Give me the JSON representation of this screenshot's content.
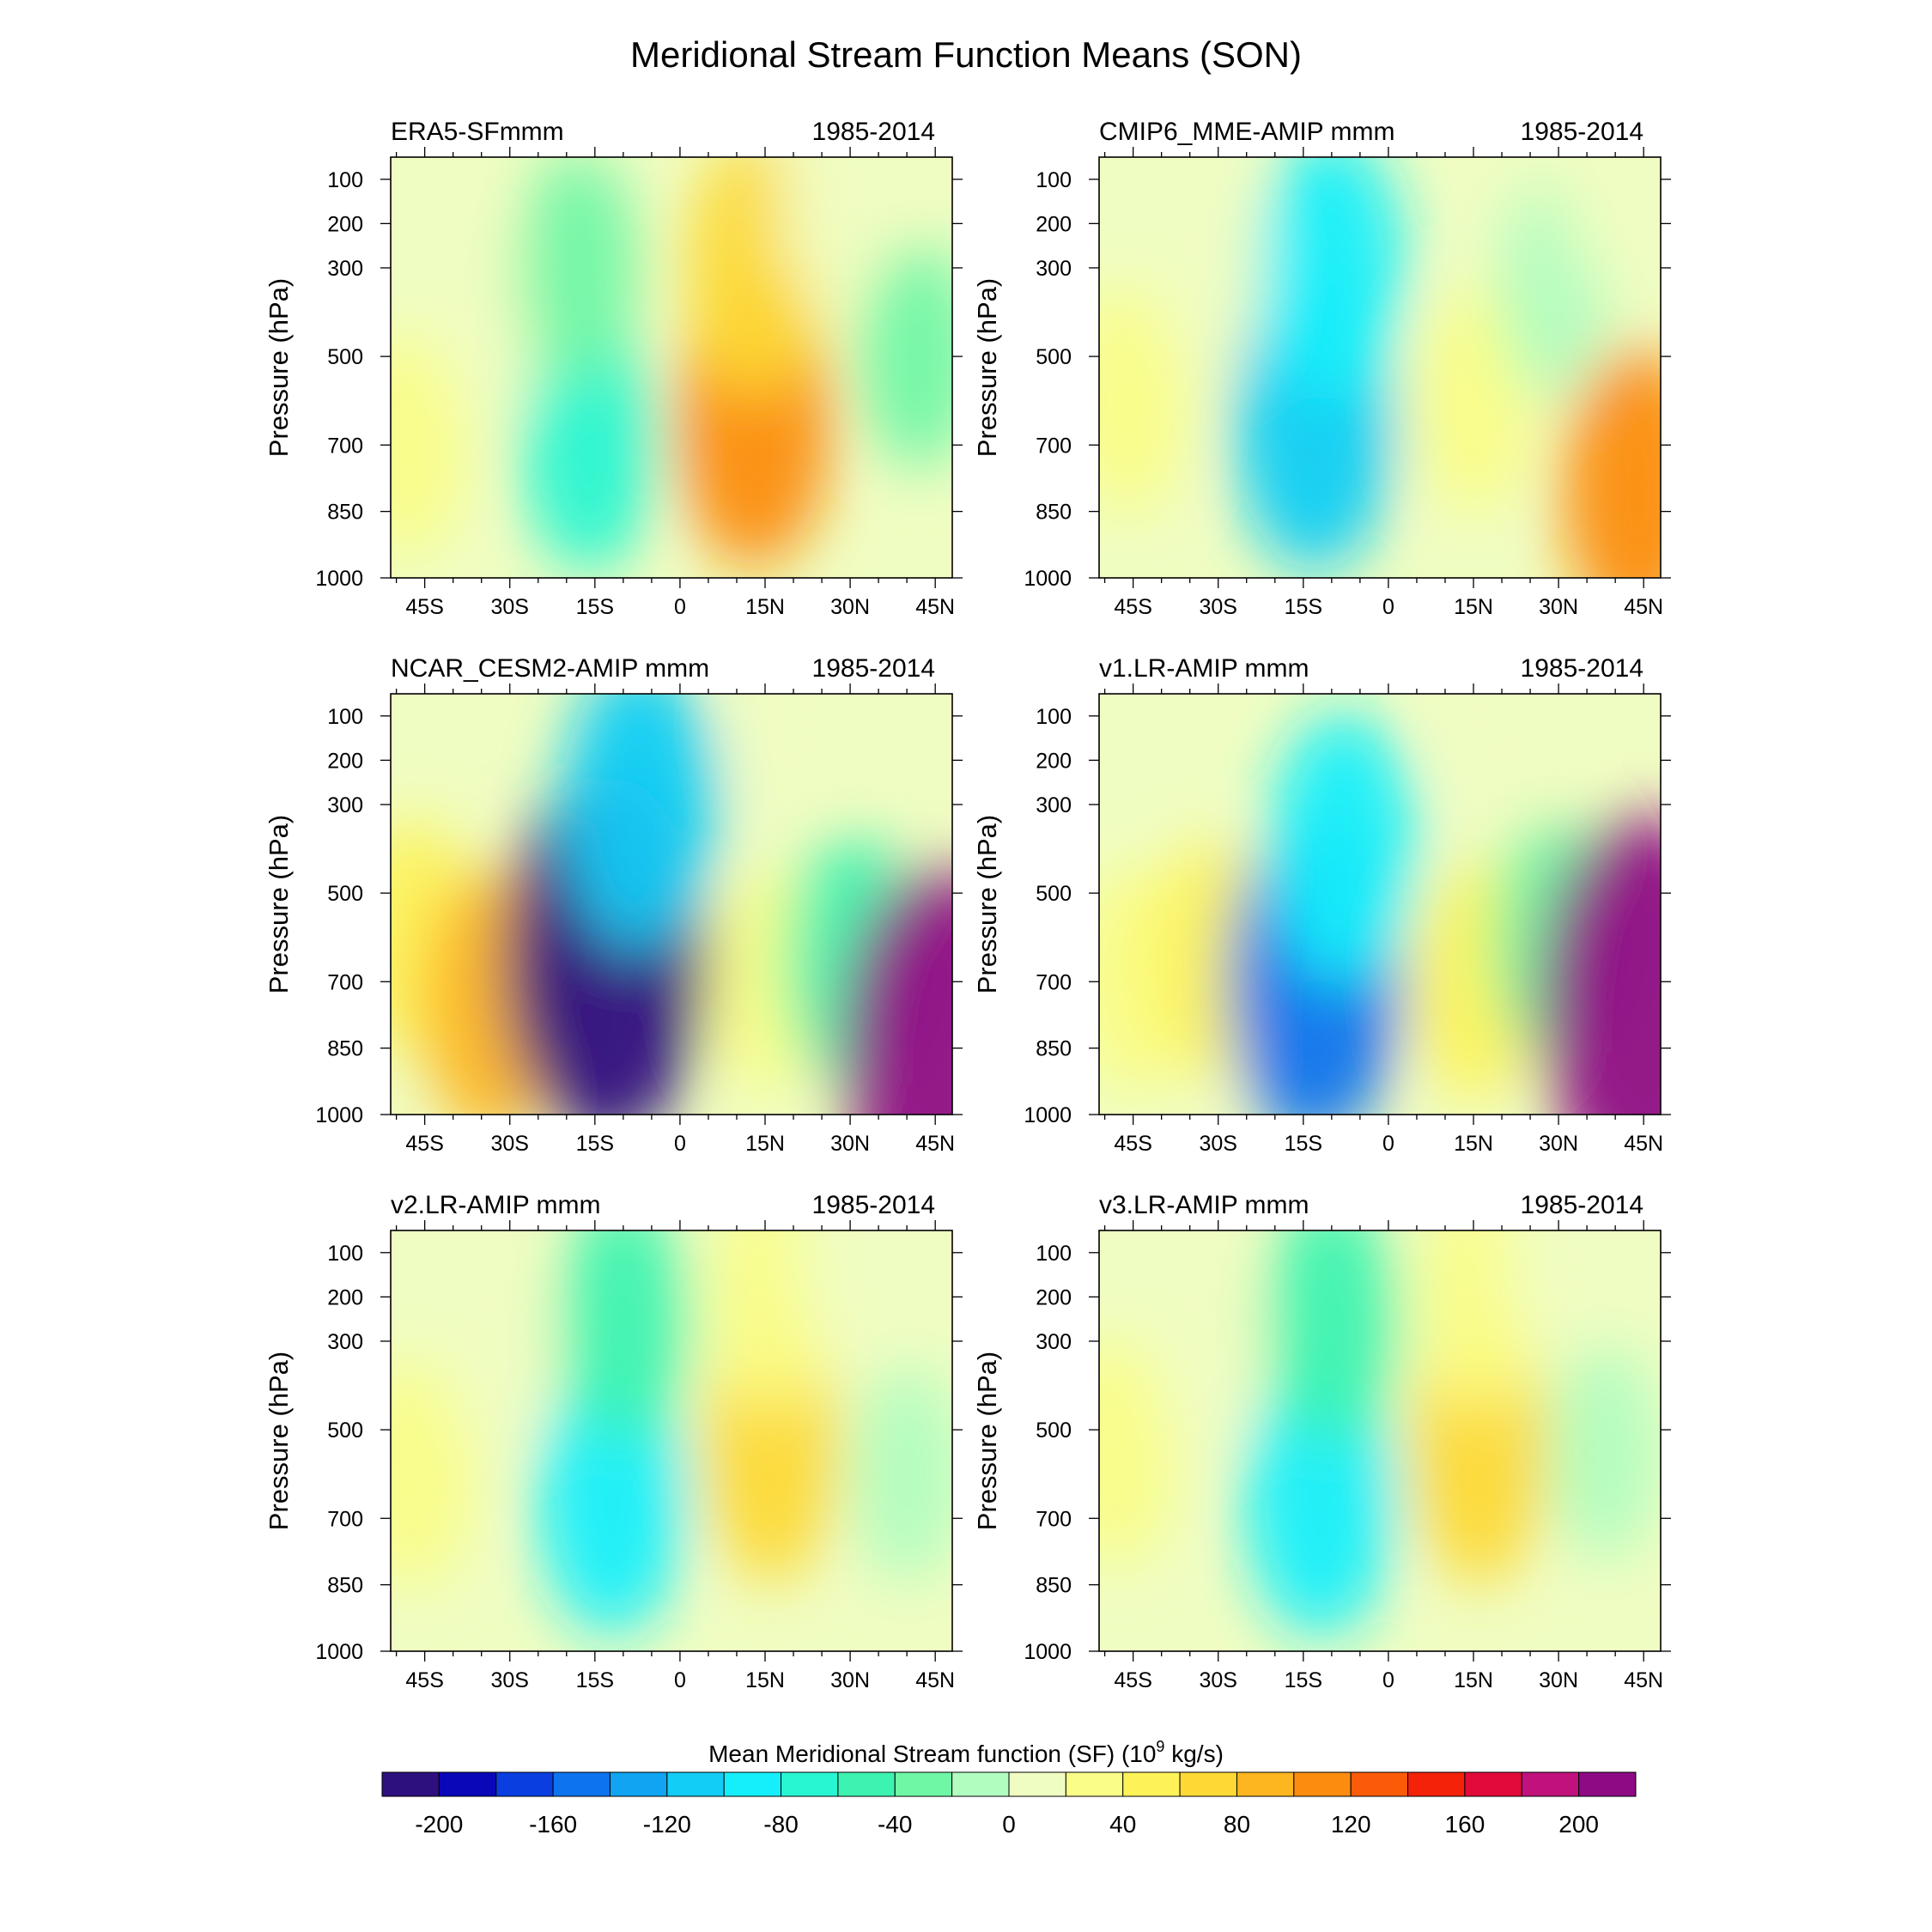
{
  "figure": {
    "title": "Meridional Stream Function Means (SON)"
  },
  "chart_data": {
    "type": "heatmap",
    "title": "Meridional Stream Function Means (SON)",
    "xlabel": "",
    "ylabel": "Pressure (hPa)",
    "x_ticks": [
      "45S",
      "30S",
      "15S",
      "0",
      "15N",
      "30N",
      "45N"
    ],
    "x_tick_values": [
      -45,
      -30,
      -15,
      0,
      15,
      30,
      45
    ],
    "xlim": [
      -51,
      48
    ],
    "y_ticks": [
      "100",
      "200",
      "300",
      "500",
      "700",
      "850",
      "1000"
    ],
    "y_tick_values": [
      100,
      200,
      300,
      500,
      700,
      850,
      1000
    ],
    "ylim": [
      1000,
      50
    ],
    "panels": [
      {
        "name": "ERA5-SFmmm",
        "period": "1985-2014",
        "cells": [
          {
            "lat": -48,
            "p": 700,
            "value": 25
          },
          {
            "lat": -34,
            "p": 400,
            "value": 5
          },
          {
            "lat": -16,
            "p": 700,
            "value": -65
          },
          {
            "lat": -18,
            "p": 300,
            "value": -35
          },
          {
            "lat": 13,
            "p": 650,
            "value": 110
          },
          {
            "lat": 13,
            "p": 300,
            "value": 70
          },
          {
            "lat": 27,
            "p": 150,
            "value": 5
          },
          {
            "lat": 42,
            "p": 500,
            "value": -25
          }
        ]
      },
      {
        "name": "CMIP6_MME-AMIP  mmm",
        "period": "1985-2014",
        "cells": [
          {
            "lat": -46,
            "p": 600,
            "value": 30
          },
          {
            "lat": -32,
            "p": 300,
            "value": 5
          },
          {
            "lat": -13,
            "p": 650,
            "value": -120
          },
          {
            "lat": -10,
            "p": 300,
            "value": -85
          },
          {
            "lat": 15,
            "p": 600,
            "value": 25
          },
          {
            "lat": 29,
            "p": 350,
            "value": -15
          },
          {
            "lat": 44,
            "p": 800,
            "value": 100
          },
          {
            "lat": 40,
            "p": 100,
            "value": 5
          }
        ]
      },
      {
        "name": "NCAR_CESM2-AMIP  mmm",
        "period": "1985-2014",
        "cells": [
          {
            "lat": -47,
            "p": 600,
            "value": 40
          },
          {
            "lat": -33,
            "p": 750,
            "value": 80
          },
          {
            "lat": -13,
            "p": 650,
            "value": -210
          },
          {
            "lat": -7,
            "p": 300,
            "value": -110
          },
          {
            "lat": 15,
            "p": 700,
            "value": 25
          },
          {
            "lat": 30,
            "p": 650,
            "value": -60
          },
          {
            "lat": 46,
            "p": 850,
            "value": 200
          },
          {
            "lat": 20,
            "p": 100,
            "value": 5
          }
        ]
      },
      {
        "name": "v1.LR-AMIP  mmm",
        "period": "1985-2014",
        "cells": [
          {
            "lat": -45,
            "p": 700,
            "value": 30
          },
          {
            "lat": -31,
            "p": 650,
            "value": 40
          },
          {
            "lat": -13,
            "p": 700,
            "value": -150
          },
          {
            "lat": -8,
            "p": 400,
            "value": -90
          },
          {
            "lat": 15,
            "p": 700,
            "value": 40
          },
          {
            "lat": 29,
            "p": 600,
            "value": -40
          },
          {
            "lat": 45,
            "p": 750,
            "value": 220
          },
          {
            "lat": 20,
            "p": 100,
            "value": 5
          }
        ]
      },
      {
        "name": "v2.LR-AMIP  mmm",
        "period": "1985-2014",
        "cells": [
          {
            "lat": -47,
            "p": 600,
            "value": 30
          },
          {
            "lat": -33,
            "p": 300,
            "value": 5
          },
          {
            "lat": -12,
            "p": 650,
            "value": -95
          },
          {
            "lat": -10,
            "p": 250,
            "value": -55
          },
          {
            "lat": 16,
            "p": 550,
            "value": 70
          },
          {
            "lat": 16,
            "p": 200,
            "value": 30
          },
          {
            "lat": 40,
            "p": 600,
            "value": -15
          },
          {
            "lat": 30,
            "p": 100,
            "value": 5
          }
        ]
      },
      {
        "name": "v3.LR-AMIP  mmm",
        "period": "1985-2014",
        "cells": [
          {
            "lat": -48,
            "p": 550,
            "value": 30
          },
          {
            "lat": -33,
            "p": 300,
            "value": 5
          },
          {
            "lat": -12,
            "p": 650,
            "value": -100
          },
          {
            "lat": -10,
            "p": 250,
            "value": -60
          },
          {
            "lat": 16,
            "p": 550,
            "value": 75
          },
          {
            "lat": 16,
            "p": 200,
            "value": 30
          },
          {
            "lat": 38,
            "p": 550,
            "value": -15
          },
          {
            "lat": 30,
            "p": 100,
            "value": 5
          }
        ]
      }
    ],
    "colorbar": {
      "title": "Mean Meridional Stream function (SF) (10",
      "title_exponent": "9",
      "title_suffix": " kg/s)",
      "levels": [
        -220,
        -200,
        -180,
        -160,
        -140,
        -120,
        -100,
        -80,
        -60,
        -40,
        -20,
        0,
        20,
        40,
        60,
        80,
        100,
        120,
        140,
        160,
        180,
        200,
        220
      ],
      "colors": [
        "#2e0f7e",
        "#0a07b8",
        "#0a3ee0",
        "#0e73ee",
        "#10a4f2",
        "#12cdf5",
        "#14effb",
        "#28f5d2",
        "#3df3b1",
        "#6ff7a6",
        "#b1fdc0",
        "#f0fdc2",
        "#fafd86",
        "#fdf258",
        "#fdd935",
        "#fdb520",
        "#fc8c10",
        "#fb5b08",
        "#f42208",
        "#e20a3a",
        "#c0117c",
        "#8e0a85"
      ],
      "tick_labels": [
        "-200",
        "-160",
        "-120",
        "-80",
        "-40",
        "0",
        "40",
        "80",
        "120",
        "160",
        "200"
      ],
      "tick_values": [
        -200,
        -160,
        -120,
        -80,
        -40,
        0,
        40,
        80,
        120,
        160,
        200
      ]
    }
  }
}
